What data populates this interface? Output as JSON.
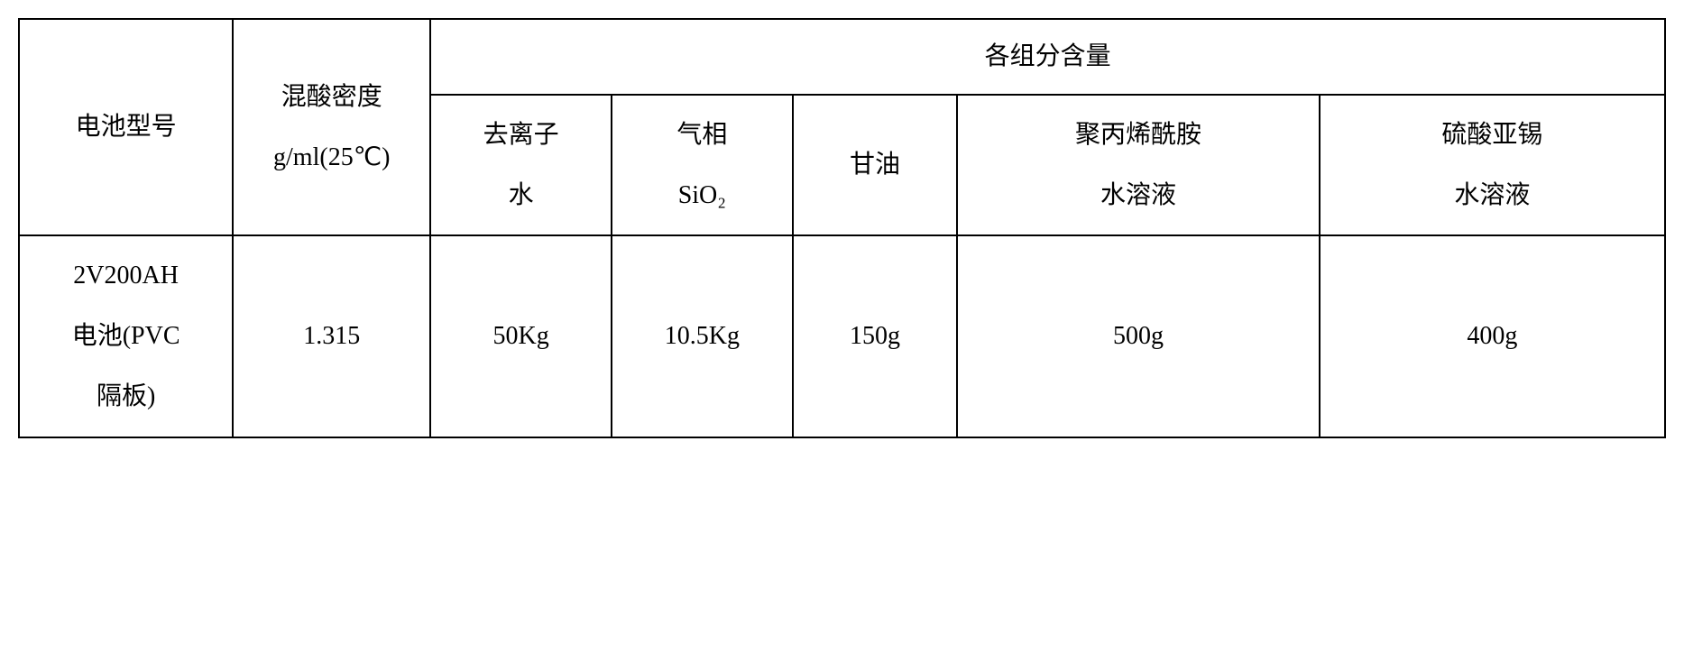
{
  "table": {
    "type": "table",
    "border_color": "#000000",
    "background_color": "#ffffff",
    "text_color": "#000000",
    "font_family": "SimSun",
    "header_fontsize": 28,
    "data_fontsize": 28,
    "headers": {
      "battery_model": "电池型号",
      "mixed_acid_density_line1": "混酸密度",
      "mixed_acid_density_line2": "g/ml(25℃)",
      "components_title": "各组分含量",
      "di_water_line1": "去离子",
      "di_water_line2": "水",
      "gas_phase_line1": "气相",
      "gas_phase_line2": "SiO₂",
      "glycerin": "甘油",
      "pam_line1": "聚丙烯酰胺",
      "pam_line2": "水溶液",
      "tin_sulfate_line1": "硫酸亚锡",
      "tin_sulfate_line2": "水溶液"
    },
    "columns": [
      {
        "key": "battery_model",
        "width": "13%"
      },
      {
        "key": "density",
        "width": "12%"
      },
      {
        "key": "di_water",
        "width": "11%"
      },
      {
        "key": "sio2",
        "width": "11%"
      },
      {
        "key": "glycerin",
        "width": "10%"
      },
      {
        "key": "pam",
        "width": "22%"
      },
      {
        "key": "tin_sulfate",
        "width": "21%"
      }
    ],
    "rows": [
      {
        "battery_model_line1": "2V200AH",
        "battery_model_line2": "电池(PVC",
        "battery_model_line3": "隔板)",
        "density": "1.315",
        "di_water": "50Kg",
        "sio2": "10.5Kg",
        "glycerin": "150g",
        "pam": "500g",
        "tin_sulfate": "400g"
      }
    ]
  }
}
